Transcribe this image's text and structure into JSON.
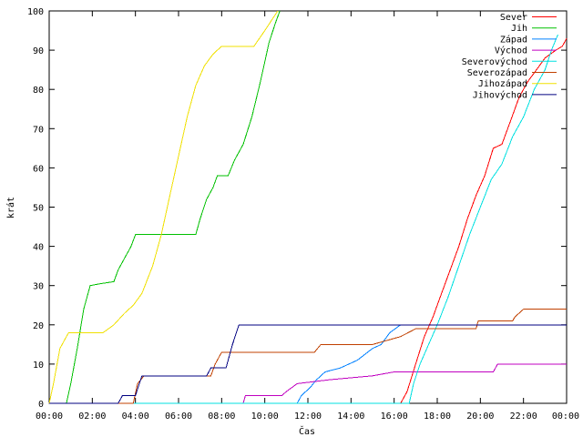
{
  "chart_data": {
    "type": "line",
    "xlabel": "Čas",
    "ylabel": "krát",
    "xlim": [
      0,
      24
    ],
    "ylim": [
      0,
      100
    ],
    "x_ticks": [
      "00:00",
      "02:00",
      "04:00",
      "06:00",
      "08:00",
      "10:00",
      "12:00",
      "14:00",
      "16:00",
      "18:00",
      "20:00",
      "22:00",
      "00:00"
    ],
    "y_ticks": [
      "0",
      "10",
      "20",
      "30",
      "40",
      "50",
      "60",
      "70",
      "80",
      "90",
      "100"
    ],
    "legend_position": "top-right",
    "grid": false,
    "series": [
      {
        "name": "Sever",
        "color": "#ff0000",
        "points": [
          [
            0,
            0
          ],
          [
            16.3,
            0
          ],
          [
            16.6,
            3
          ],
          [
            17.0,
            10
          ],
          [
            17.4,
            17
          ],
          [
            17.8,
            22
          ],
          [
            18.2,
            28
          ],
          [
            18.6,
            34
          ],
          [
            19.0,
            40
          ],
          [
            19.4,
            47
          ],
          [
            19.8,
            53
          ],
          [
            20.2,
            58
          ],
          [
            20.6,
            65
          ],
          [
            21.0,
            66
          ],
          [
            21.4,
            72
          ],
          [
            21.8,
            78
          ],
          [
            22.2,
            82
          ],
          [
            22.6,
            85
          ],
          [
            23.0,
            88
          ],
          [
            23.5,
            90
          ],
          [
            23.8,
            91
          ],
          [
            24.0,
            93
          ]
        ]
      },
      {
        "name": "Jih",
        "color": "#00c000",
        "points": [
          [
            0,
            0
          ],
          [
            0.8,
            0
          ],
          [
            1.0,
            5
          ],
          [
            1.3,
            14
          ],
          [
            1.6,
            24
          ],
          [
            1.9,
            30
          ],
          [
            2.4,
            30.5
          ],
          [
            3.0,
            31
          ],
          [
            3.2,
            34
          ],
          [
            3.5,
            37
          ],
          [
            3.8,
            40
          ],
          [
            4.0,
            43
          ],
          [
            5.0,
            43
          ],
          [
            6.0,
            43
          ],
          [
            6.8,
            43
          ],
          [
            7.0,
            47
          ],
          [
            7.3,
            52
          ],
          [
            7.6,
            55
          ],
          [
            7.8,
            58
          ],
          [
            8.3,
            58
          ],
          [
            8.6,
            62
          ],
          [
            9.0,
            66
          ],
          [
            9.4,
            73
          ],
          [
            9.8,
            82
          ],
          [
            10.2,
            92
          ],
          [
            10.5,
            97
          ],
          [
            10.7,
            100
          ]
        ]
      },
      {
        "name": "Západ",
        "color": "#0080ff",
        "points": [
          [
            0,
            0
          ],
          [
            11.5,
            0
          ],
          [
            11.7,
            2
          ],
          [
            12.1,
            4
          ],
          [
            12.4,
            6
          ],
          [
            12.8,
            8
          ],
          [
            13.5,
            9
          ],
          [
            14.3,
            11
          ],
          [
            15.0,
            14
          ],
          [
            15.4,
            15
          ],
          [
            15.8,
            18
          ],
          [
            16.3,
            20
          ],
          [
            24.0,
            20
          ]
        ]
      },
      {
        "name": "Východ",
        "color": "#c000c0",
        "points": [
          [
            0,
            0
          ],
          [
            9.0,
            0
          ],
          [
            9.1,
            2
          ],
          [
            10.8,
            2
          ],
          [
            11.0,
            3
          ],
          [
            11.5,
            5
          ],
          [
            13.0,
            6
          ],
          [
            15.0,
            7
          ],
          [
            16.0,
            8
          ],
          [
            20.6,
            8
          ],
          [
            20.8,
            10
          ],
          [
            24.0,
            10
          ]
        ]
      },
      {
        "name": "Severovýchod",
        "color": "#00e0e0",
        "points": [
          [
            0,
            0
          ],
          [
            16.7,
            0
          ],
          [
            16.9,
            5
          ],
          [
            17.2,
            10
          ],
          [
            17.6,
            15
          ],
          [
            18.0,
            20
          ],
          [
            18.5,
            27
          ],
          [
            19.0,
            35
          ],
          [
            19.5,
            43
          ],
          [
            20.0,
            50
          ],
          [
            20.5,
            57
          ],
          [
            21.0,
            61
          ],
          [
            21.5,
            68
          ],
          [
            22.0,
            73
          ],
          [
            22.5,
            80
          ],
          [
            23.0,
            85
          ],
          [
            23.3,
            90
          ],
          [
            23.6,
            94
          ]
        ]
      },
      {
        "name": "Severozápad",
        "color": "#c04000",
        "points": [
          [
            0,
            0
          ],
          [
            3.9,
            0
          ],
          [
            4.1,
            5
          ],
          [
            4.4,
            7
          ],
          [
            7.5,
            7
          ],
          [
            7.7,
            10
          ],
          [
            8.0,
            13
          ],
          [
            12.3,
            13
          ],
          [
            12.6,
            15
          ],
          [
            15.0,
            15
          ],
          [
            16.3,
            17
          ],
          [
            17.0,
            19
          ],
          [
            19.8,
            19
          ],
          [
            19.9,
            21
          ],
          [
            21.5,
            21
          ],
          [
            21.6,
            22
          ],
          [
            22.0,
            24
          ],
          [
            24.0,
            24
          ]
        ]
      },
      {
        "name": "Jihozápad",
        "color": "#f0e000",
        "points": [
          [
            0,
            0
          ],
          [
            0.2,
            5
          ],
          [
            0.5,
            14
          ],
          [
            0.9,
            18
          ],
          [
            2.5,
            18
          ],
          [
            3.0,
            20
          ],
          [
            3.5,
            23
          ],
          [
            3.9,
            25
          ],
          [
            4.3,
            28
          ],
          [
            4.8,
            35
          ],
          [
            5.2,
            43
          ],
          [
            5.6,
            53
          ],
          [
            6.0,
            63
          ],
          [
            6.4,
            73
          ],
          [
            6.8,
            81
          ],
          [
            7.2,
            86
          ],
          [
            7.6,
            89
          ],
          [
            8.0,
            91
          ],
          [
            9.5,
            91
          ],
          [
            10.0,
            95
          ],
          [
            10.6,
            100
          ]
        ]
      },
      {
        "name": "Jihovýchod",
        "color": "#000080",
        "points": [
          [
            0,
            0
          ],
          [
            3.2,
            0
          ],
          [
            3.4,
            2
          ],
          [
            4.0,
            2
          ],
          [
            4.3,
            7
          ],
          [
            7.3,
            7
          ],
          [
            7.5,
            9
          ],
          [
            8.2,
            9
          ],
          [
            8.5,
            15
          ],
          [
            8.8,
            20
          ],
          [
            24.0,
            20
          ]
        ]
      }
    ]
  }
}
